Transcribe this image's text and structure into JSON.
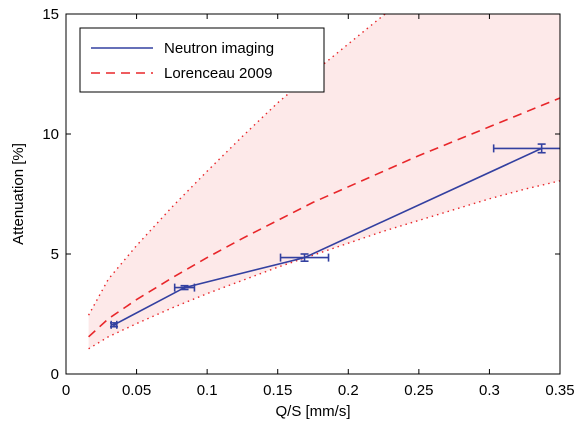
{
  "chart_data": {
    "type": "line",
    "title": "",
    "xlabel": "Q/S [mm/s]",
    "ylabel": "Attenuation [%]",
    "xlim": [
      0,
      0.35
    ],
    "ylim": [
      0,
      15
    ],
    "xticks": [
      0,
      0.05,
      0.1,
      0.15,
      0.2,
      0.25,
      0.3,
      0.35
    ],
    "xtick_labels": [
      "0",
      "0.05",
      "0.1",
      "0.15",
      "0.2",
      "0.25",
      "0.3",
      "0.35"
    ],
    "yticks": [
      0,
      5,
      10,
      15
    ],
    "ytick_labels": [
      "0",
      "5",
      "10",
      "15"
    ],
    "grid": false,
    "legend": {
      "position": "top-left"
    },
    "colors": {
      "neutron": "#3340a0",
      "lorenceau": "#e8262a",
      "band_fill": "#fde9e9"
    },
    "series": [
      {
        "name": "Neutron imaging",
        "style": "solid",
        "x": [
          0.034,
          0.084,
          0.169,
          0.337
        ],
        "y": [
          2.05,
          3.6,
          4.85,
          9.4
        ],
        "xerr": [
          0.002,
          0.007,
          0.017,
          0.034
        ],
        "yerr": [
          0.08,
          0.08,
          0.15,
          0.18
        ]
      },
      {
        "name": "Lorenceau 2009",
        "style": "dashed",
        "x": [
          0.016,
          0.03,
          0.05,
          0.075,
          0.1,
          0.125,
          0.15,
          0.175,
          0.2,
          0.225,
          0.25,
          0.275,
          0.3,
          0.325,
          0.35
        ],
        "y": [
          1.55,
          2.3,
          3.1,
          4.0,
          4.85,
          5.65,
          6.4,
          7.15,
          7.8,
          8.45,
          9.1,
          9.7,
          10.3,
          10.9,
          11.5
        ]
      }
    ],
    "band": {
      "style": "dotted",
      "x": [
        0.016,
        0.03,
        0.05,
        0.075,
        0.1,
        0.125,
        0.15,
        0.175,
        0.2,
        0.225,
        0.25,
        0.275,
        0.3,
        0.325,
        0.35
      ],
      "upper": [
        2.45,
        3.95,
        5.35,
        6.95,
        8.45,
        9.9,
        11.3,
        12.55,
        13.75,
        14.95,
        16.1,
        17.2,
        18.3,
        19.3,
        20.3
      ],
      "lower": [
        1.05,
        1.55,
        2.1,
        2.75,
        3.35,
        3.9,
        4.45,
        4.95,
        5.45,
        5.95,
        6.4,
        6.85,
        7.3,
        7.7,
        8.05
      ]
    }
  }
}
